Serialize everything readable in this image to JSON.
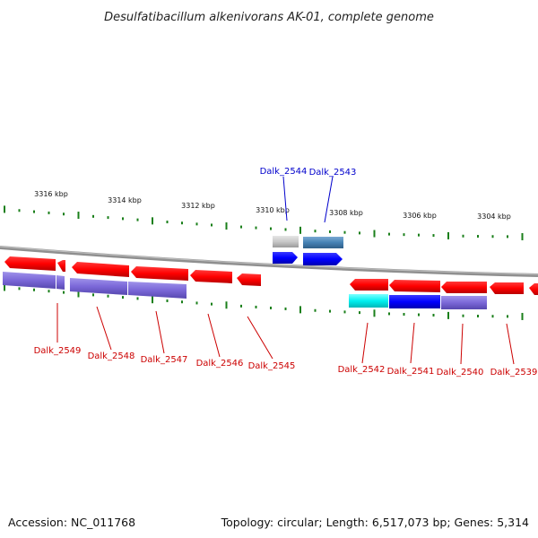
{
  "title": "Desulfatibacillum alkenivorans AK-01, complete genome",
  "footer": {
    "accession": "Accession: NC_011768",
    "topology": "Topology: circular; Length: 6,517,073 bp; Genes: 5,314"
  },
  "ruler_labels": [
    "3316 kbp",
    "3314 kbp",
    "3312 kbp",
    "3310 kbp",
    "3308 kbp",
    "3306 kbp",
    "3304 kbp"
  ],
  "genes_top": [
    "Dalk_2544",
    "Dalk_2543"
  ],
  "genes_bottom": [
    "Dalk_2549",
    "Dalk_2548",
    "Dalk_2547",
    "Dalk_2546",
    "Dalk_2545",
    "Dalk_2542",
    "Dalk_2541",
    "Dalk_2540",
    "Dalk_2539"
  ],
  "colors": {
    "gene_red": "#ff0000",
    "cds_purple": "#7b68d8",
    "cds_blue": "#0000ff",
    "cds_cyan": "#00ffff",
    "cds_steel": "#4682b4",
    "cds_gray": "#c8c8c8",
    "tick_green": "#1a7f1a",
    "label_red": "#cc0000",
    "label_blue": "#0000cc",
    "backbone": "#8a8a8a"
  }
}
